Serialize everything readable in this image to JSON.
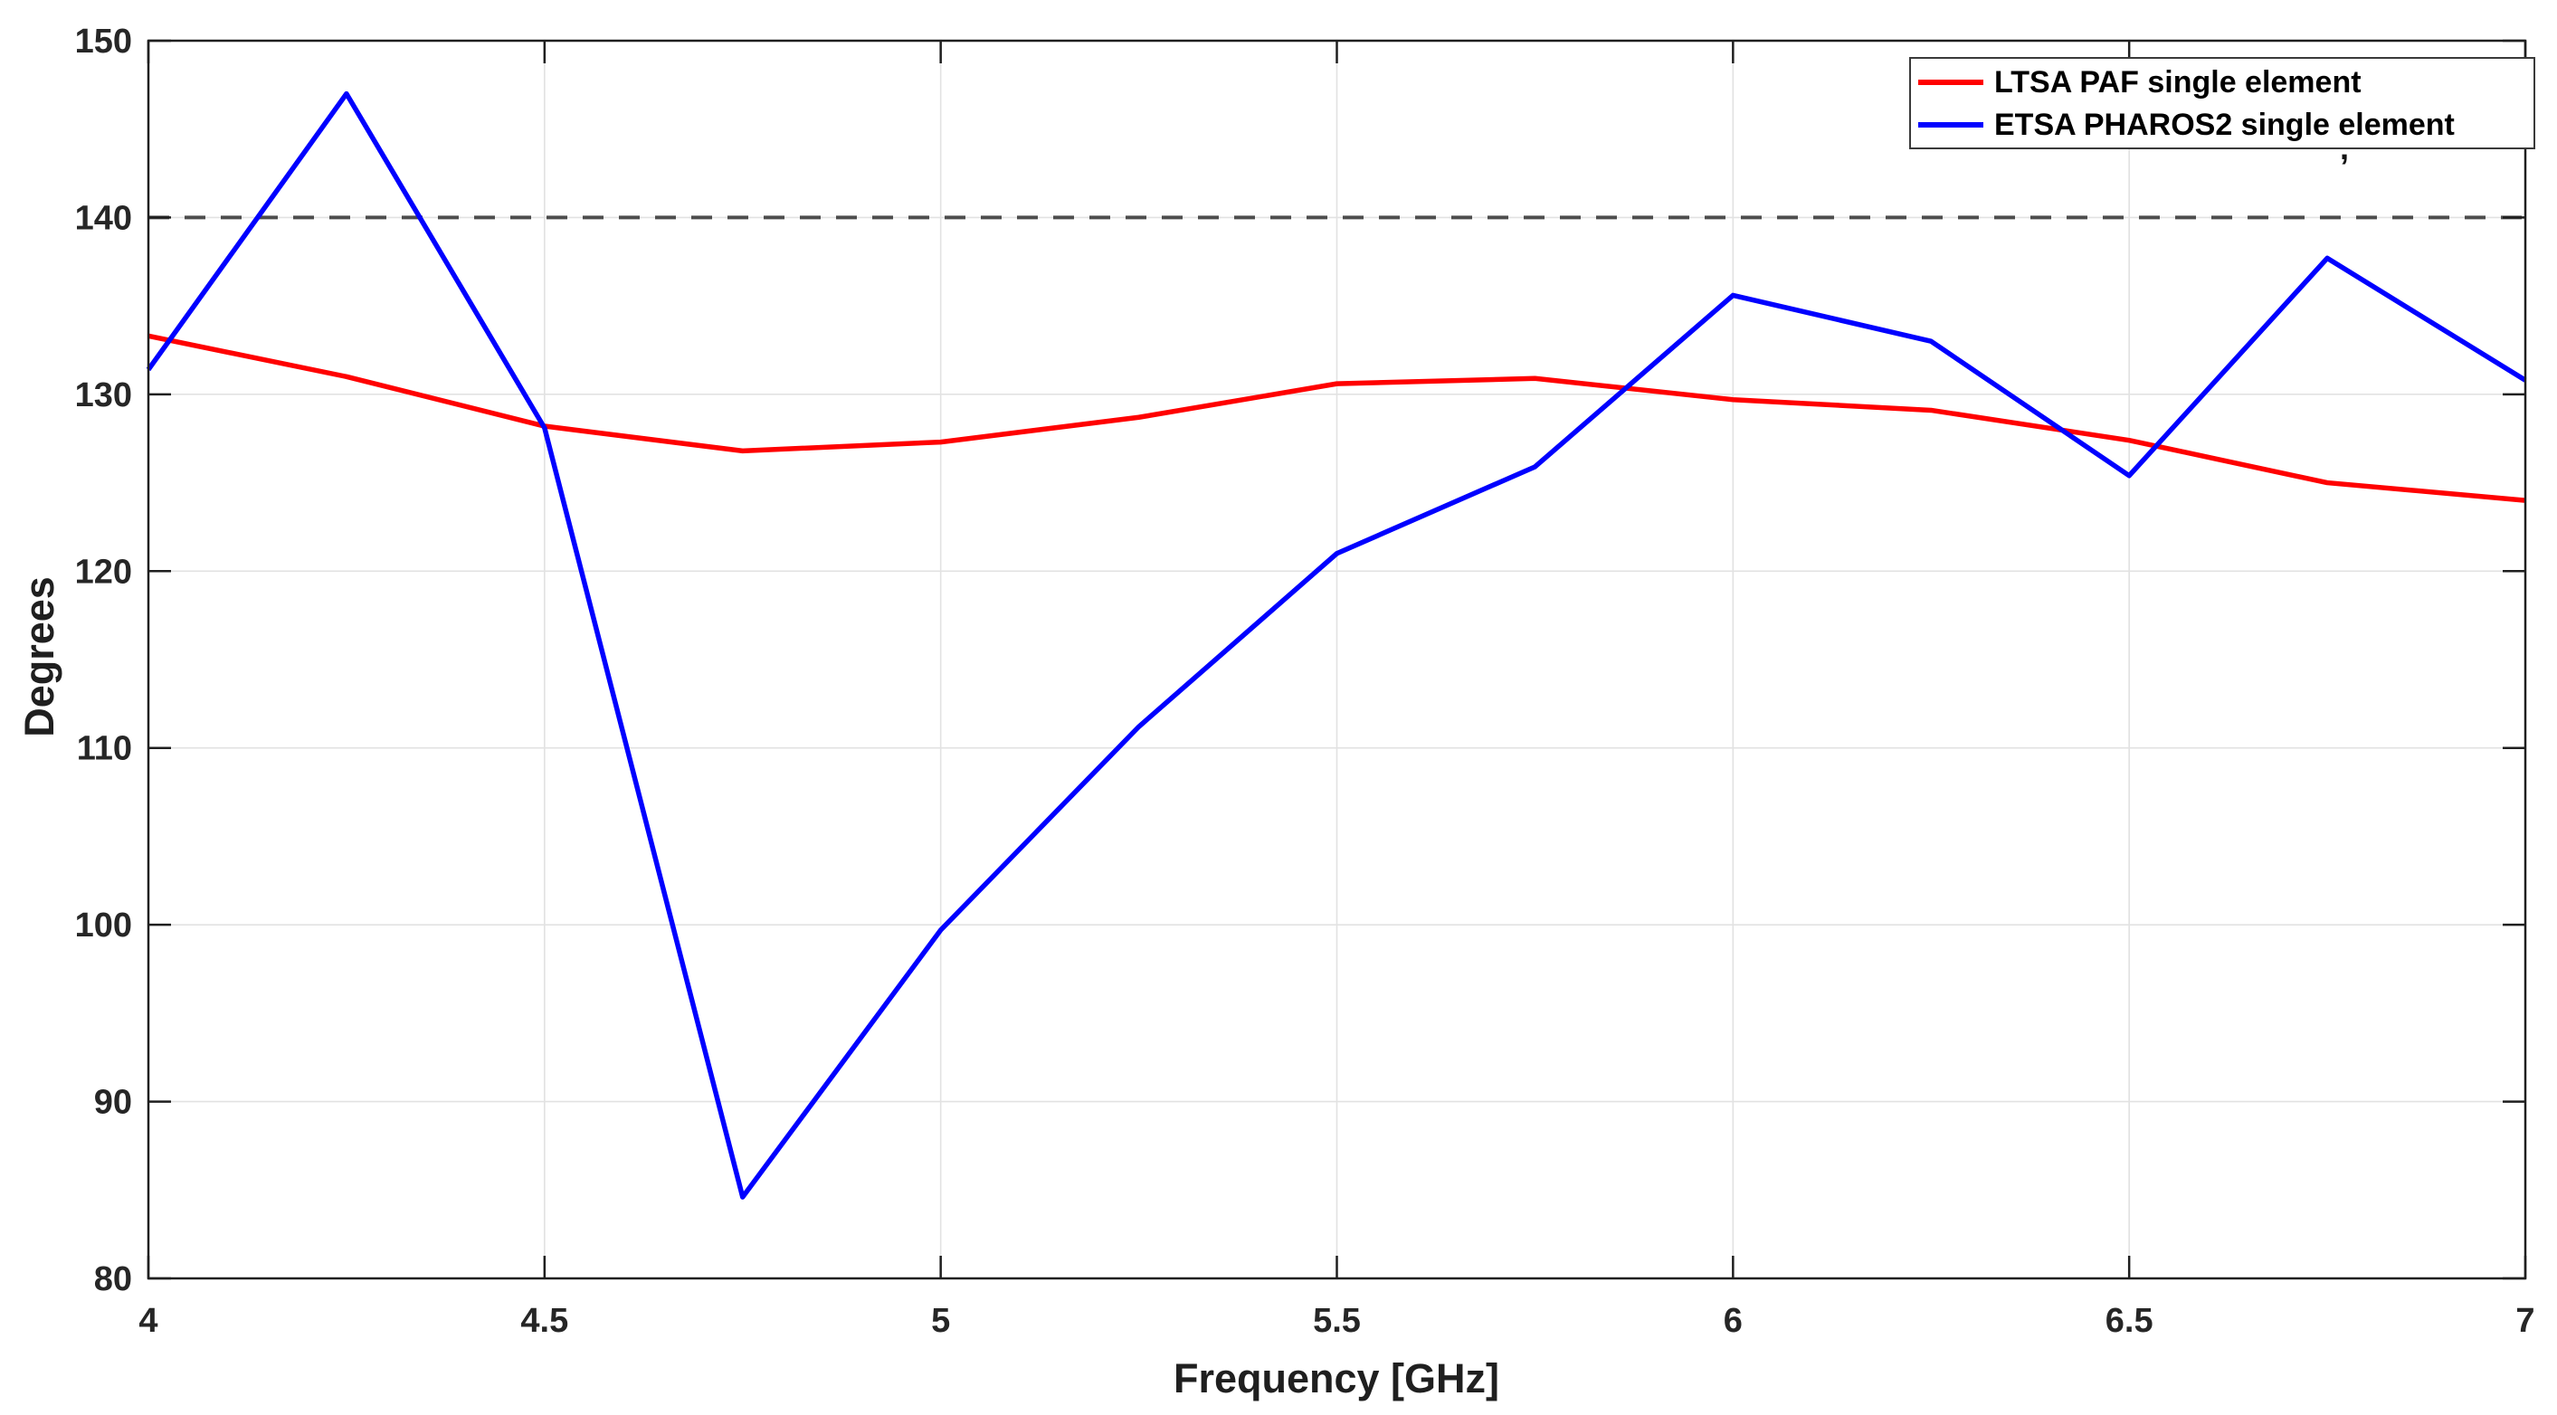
{
  "figure": {
    "stray_mark_glyph": ","
  },
  "chart_data": {
    "type": "line",
    "title": "",
    "xlabel": "Frequency [GHz]",
    "ylabel": "Degrees",
    "xlim": [
      4,
      7
    ],
    "ylim": [
      80,
      150
    ],
    "x_ticks": [
      4,
      4.5,
      5,
      5.5,
      6,
      6.5,
      7
    ],
    "x_tick_labels": [
      "4",
      "4.5",
      "5",
      "5.5",
      "6",
      "6.5",
      "7"
    ],
    "y_ticks": [
      80,
      90,
      100,
      110,
      120,
      130,
      140,
      150
    ],
    "y_tick_labels": [
      "80",
      "90",
      "100",
      "110",
      "120",
      "130",
      "140",
      "150"
    ],
    "grid": true,
    "x": [
      4,
      4.25,
      4.5,
      4.75,
      5,
      5.25,
      5.5,
      5.75,
      6,
      6.25,
      6.5,
      6.75,
      7
    ],
    "series": [
      {
        "name": "LTSA PAF single element",
        "color": "#ff0000",
        "style": "solid",
        "values": [
          133.3,
          131.0,
          128.2,
          126.8,
          127.3,
          128.7,
          130.6,
          130.9,
          129.7,
          129.1,
          127.4,
          125.0,
          124.0
        ]
      },
      {
        "name": "ETSA PHAROS2 single element",
        "color": "#0000ff",
        "style": "solid",
        "values": [
          131.4,
          147.0,
          128.1,
          84.6,
          99.7,
          111.2,
          121.0,
          125.9,
          135.6,
          133.0,
          125.4,
          137.7,
          130.8
        ]
      }
    ],
    "reference_line": {
      "y": 140,
      "color": "#4d4d4d",
      "style": "dashed"
    },
    "legend": {
      "position": "top-right",
      "entries": [
        "LTSA PAF single element",
        "ETSA PHAROS2 single element"
      ]
    },
    "colors": {
      "axis": "#1f1f1f",
      "tick_label": "#262626",
      "grid": "#e2e2e2",
      "background": "#ffffff"
    }
  }
}
